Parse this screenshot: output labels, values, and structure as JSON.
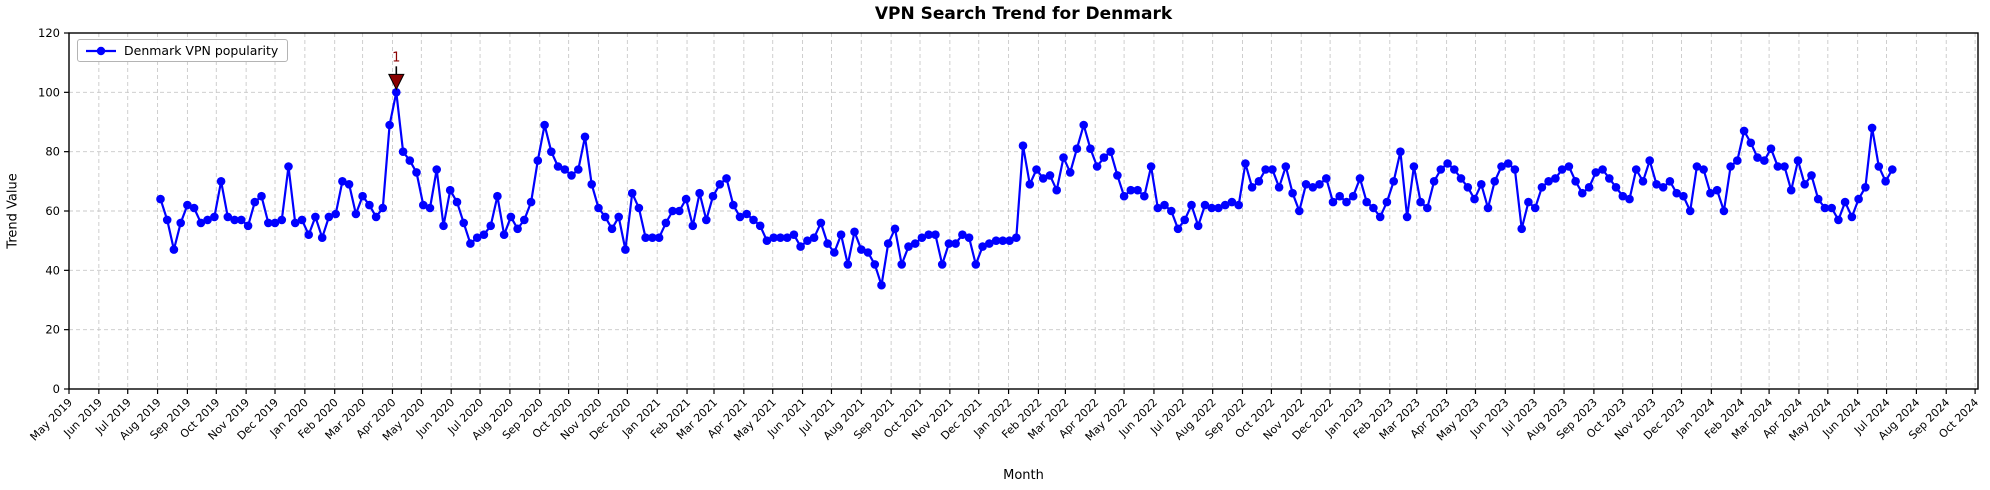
{
  "figure": {
    "title": "VPN Search Trend for Denmark",
    "xlabel": "Month",
    "ylabel": "Trend Value",
    "legend_label": "Denmark VPN popularity"
  },
  "colors": {
    "line": "#0000ff",
    "marker": "#0000ff",
    "annotation": "#8b0000",
    "annotation_edge": "#000000",
    "grid": "#c9c9c9",
    "axis": "#000000",
    "tick_text": "#000000",
    "background": "#ffffff"
  },
  "chart_data": {
    "type": "line",
    "title": "VPN Search Trend for Denmark",
    "xlabel": "Month",
    "ylabel": "Trend Value",
    "legend": [
      "Denmark VPN popularity"
    ],
    "legend_position": "upper left",
    "grid": true,
    "grid_style": "dashed",
    "marker": "o",
    "ylim": [
      0,
      120
    ],
    "yticks": [
      0,
      20,
      40,
      60,
      80,
      100,
      120
    ],
    "x_axis_range": [
      "2019-05-01",
      "2024-10-04"
    ],
    "x_tick_labels": [
      "May 2019",
      "Jun 2019",
      "Jul 2019",
      "Aug 2019",
      "Sep 2019",
      "Oct 2019",
      "Nov 2019",
      "Dec 2019",
      "Jan 2020",
      "Feb 2020",
      "Mar 2020",
      "Apr 2020",
      "May 2020",
      "Jun 2020",
      "Jul 2020",
      "Aug 2020",
      "Sep 2020",
      "Oct 2020",
      "Nov 2020",
      "Dec 2020",
      "Jan 2021",
      "Feb 2021",
      "Mar 2021",
      "Apr 2021",
      "May 2021",
      "Jun 2021",
      "Jul 2021",
      "Aug 2021",
      "Sep 2021",
      "Oct 2021",
      "Nov 2021",
      "Dec 2021",
      "Jan 2022",
      "Feb 2022",
      "Mar 2022",
      "Apr 2022",
      "May 2022",
      "Jun 2022",
      "Jul 2022",
      "Aug 2022",
      "Sep 2022",
      "Oct 2022",
      "Nov 2022",
      "Dec 2022",
      "Jan 2023",
      "Feb 2023",
      "Mar 2023",
      "Apr 2023",
      "May 2023",
      "Jun 2023",
      "Jul 2023",
      "Aug 2023",
      "Sep 2023",
      "Oct 2023",
      "Nov 2023",
      "Dec 2023",
      "Jan 2024",
      "Feb 2024",
      "Mar 2024",
      "Apr 2024",
      "May 2024",
      "Jun 2024",
      "Jul 2024",
      "Aug 2024",
      "Sep 2024",
      "Oct 2024"
    ],
    "series": [
      {
        "name": "Denmark VPN popularity",
        "start_date": "2019-08-04",
        "interval_days": 7,
        "values": [
          64,
          57,
          47,
          56,
          62,
          61,
          56,
          57,
          58,
          70,
          58,
          57,
          57,
          55,
          63,
          65,
          56,
          56,
          57,
          75,
          56,
          57,
          52,
          58,
          51,
          58,
          59,
          70,
          69,
          59,
          65,
          62,
          58,
          61,
          89,
          100,
          80,
          77,
          73,
          62,
          61,
          74,
          55,
          67,
          63,
          56,
          49,
          51,
          52,
          55,
          65,
          52,
          58,
          54,
          57,
          63,
          77,
          89,
          80,
          75,
          74,
          72,
          74,
          85,
          69,
          61,
          58,
          54,
          58,
          47,
          66,
          61,
          51,
          51,
          51,
          56,
          60,
          60,
          64,
          55,
          66,
          57,
          65,
          69,
          71,
          62,
          58,
          59,
          57,
          55,
          50,
          51,
          51,
          51,
          52,
          48,
          50,
          51,
          56,
          49,
          46,
          52,
          42,
          53,
          47,
          46,
          42,
          35,
          49,
          54,
          42,
          48,
          49,
          51,
          52,
          52,
          42,
          49,
          49,
          52,
          51,
          42,
          48,
          49,
          50,
          50,
          50,
          51,
          82,
          69,
          74,
          71,
          72,
          67,
          78,
          73,
          81,
          89,
          81,
          75,
          78,
          80,
          72,
          65,
          67,
          67,
          65,
          75,
          61,
          62,
          60,
          54,
          57,
          62,
          55,
          62,
          61,
          61,
          62,
          63,
          62,
          76,
          68,
          70,
          74,
          74,
          68,
          75,
          66,
          60,
          69,
          68,
          69,
          71,
          63,
          65,
          63,
          65,
          71,
          63,
          61,
          58,
          63,
          70,
          80,
          58,
          75,
          63,
          61,
          70,
          74,
          76,
          74,
          71,
          68,
          64,
          69,
          61,
          70,
          75,
          76,
          74,
          54,
          63,
          61,
          68,
          70,
          71,
          74,
          75,
          70,
          66,
          68,
          73,
          74,
          71,
          68,
          65,
          64,
          74,
          70,
          77,
          69,
          68,
          70,
          66,
          65,
          60,
          75,
          74,
          66,
          67,
          60,
          75,
          77,
          87,
          83,
          78,
          77,
          81,
          75,
          75,
          67,
          77,
          69,
          72,
          64,
          61,
          61,
          57,
          63,
          58,
          64,
          68,
          88,
          75,
          70,
          74
        ]
      }
    ],
    "annotations": [
      {
        "text": "1",
        "date": "2020-04-05",
        "value": 100,
        "color": "#8b0000",
        "arrow": "down-wedge"
      }
    ]
  }
}
